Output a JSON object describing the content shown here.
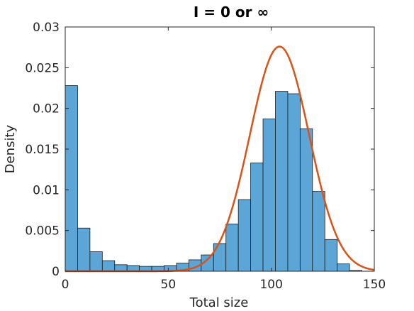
{
  "chart_data": {
    "type": "bar",
    "title": "I = 0 or ∞",
    "xlabel": "Total size",
    "ylabel": "Density",
    "xlim": [
      0,
      150
    ],
    "ylim": [
      0,
      0.03
    ],
    "x_ticks": [
      "0",
      "50",
      "100",
      "150"
    ],
    "x_tick_values": [
      0,
      50,
      100,
      150
    ],
    "y_ticks": [
      "0",
      "0.005",
      "0.01",
      "0.015",
      "0.02",
      "0.025",
      "0.03"
    ],
    "y_tick_values": [
      0,
      0.005,
      0.01,
      0.015,
      0.02,
      0.025,
      0.03
    ],
    "grid": false,
    "bin_width": 6,
    "bin_edges_start": 0,
    "series": [
      {
        "kind": "histogram",
        "values": [
          0.0228,
          0.0053,
          0.0024,
          0.0013,
          0.0008,
          0.0007,
          0.0006,
          0.0006,
          0.0007,
          0.001,
          0.0014,
          0.002,
          0.0034,
          0.0058,
          0.0088,
          0.0133,
          0.0187,
          0.0221,
          0.0218,
          0.0175,
          0.0098,
          0.0039,
          0.0009,
          0.0001
        ],
        "color": "#5ca5d7"
      },
      {
        "kind": "curve",
        "distribution": "normal",
        "mean": 104,
        "sd": 14.4,
        "peak": 0.0276,
        "color": "#d95319"
      }
    ]
  }
}
